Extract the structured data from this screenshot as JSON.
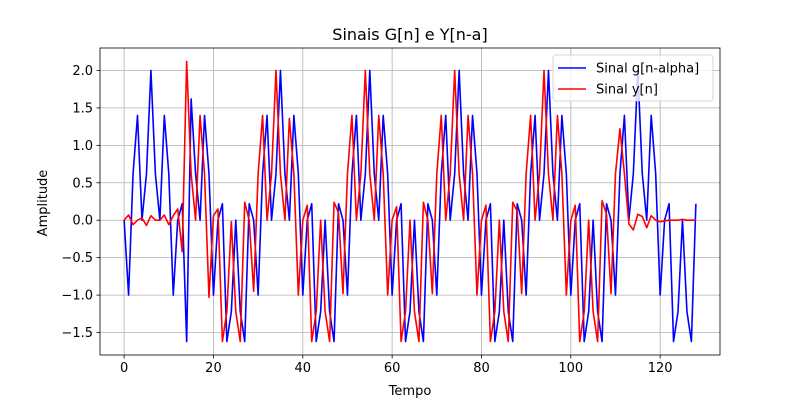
{
  "chart_data": {
    "type": "line",
    "title": "Sinais G[n] e Y[n-a]",
    "xlabel": "Tempo",
    "ylabel": "Amplitude",
    "xlim": [
      -5.4,
      133.4
    ],
    "ylim": [
      -1.8,
      2.3
    ],
    "xticks": [
      0,
      20,
      40,
      60,
      80,
      100,
      120
    ],
    "yticks": [
      -1.5,
      -1.0,
      -0.5,
      0.0,
      0.5,
      1.0,
      1.5,
      2.0
    ],
    "xtick_labels": [
      "0",
      "20",
      "40",
      "60",
      "80",
      "100",
      "120"
    ],
    "ytick_labels": [
      "−1.5",
      "−1.0",
      "−0.5",
      "0.0",
      "0.5",
      "1.0",
      "1.5",
      "2.0"
    ],
    "grid": true,
    "legend_position": "top-right",
    "series": [
      {
        "name": "Sinal g[n-alpha]",
        "color": "#0000ff",
        "x": [
          0,
          1,
          2,
          3,
          4,
          5,
          6,
          7,
          8,
          9,
          10,
          11,
          12,
          13,
          14,
          15,
          16,
          17,
          18,
          19,
          20,
          21,
          22,
          23,
          24,
          25,
          26,
          27,
          28,
          29,
          30,
          31,
          32,
          33,
          34,
          35,
          36,
          37,
          38,
          39,
          40,
          41,
          42,
          43,
          44,
          45,
          46,
          47,
          48,
          49,
          50,
          51,
          52,
          53,
          54,
          55,
          56,
          57,
          58,
          59,
          60,
          61,
          62,
          63,
          64,
          65,
          66,
          67,
          68,
          69,
          70,
          71,
          72,
          73,
          74,
          75,
          76,
          77,
          78,
          79,
          80,
          81,
          82,
          83,
          84,
          85,
          86,
          87,
          88,
          89,
          90,
          91,
          92,
          93,
          94,
          95,
          96,
          97,
          98,
          99,
          100,
          101,
          102,
          103,
          104,
          105,
          106,
          107,
          108,
          109,
          110,
          111,
          112,
          113,
          114,
          115,
          116,
          117,
          118,
          119,
          120,
          121,
          122,
          123,
          124,
          125,
          126,
          127,
          128
        ],
        "y": [
          0.0,
          -1.0,
          0.62,
          1.4,
          0.0,
          0.62,
          2.0,
          0.62,
          0.0,
          1.4,
          0.62,
          -1.0,
          0.0,
          0.22,
          -1.62,
          1.62,
          0.62,
          0.0,
          1.4,
          0.62,
          -1.0,
          0.0,
          0.22,
          -1.62,
          -1.22,
          0.0,
          -1.22,
          -1.62,
          0.22,
          0.0,
          -1.0,
          0.62,
          1.4,
          0.0,
          0.62,
          2.0,
          0.62,
          0.0,
          1.4,
          0.62,
          -1.0,
          0.0,
          0.22,
          -1.62,
          -1.22,
          0.0,
          -1.22,
          -1.62,
          0.22,
          0.0,
          -1.0,
          0.62,
          1.4,
          0.0,
          0.62,
          2.0,
          0.62,
          0.0,
          1.4,
          0.62,
          -1.0,
          0.0,
          0.22,
          -1.62,
          -1.22,
          0.0,
          -1.22,
          -1.62,
          0.22,
          0.0,
          -1.0,
          0.62,
          1.4,
          0.0,
          0.62,
          2.0,
          0.62,
          0.0,
          1.4,
          0.62,
          -1.0,
          0.0,
          0.22,
          -1.62,
          -1.22,
          0.0,
          -1.22,
          -1.62,
          0.22,
          0.0,
          -1.0,
          0.62,
          1.4,
          0.0,
          0.62,
          2.0,
          0.62,
          0.0,
          1.4,
          0.62,
          -1.0,
          0.0,
          0.22,
          -1.62,
          -1.22,
          0.0,
          -1.22,
          -1.62,
          0.22,
          0.0,
          -1.0,
          0.62,
          1.4,
          0.0,
          0.62,
          2.0,
          0.62,
          0.0,
          1.4,
          0.62,
          -1.0,
          0.0,
          0.22,
          -1.62,
          -1.22,
          0.0,
          -1.22,
          -1.62,
          0.22
        ]
      },
      {
        "name": "Sinal y[n]",
        "color": "#ff0000",
        "x": [
          0,
          1,
          2,
          3,
          4,
          5,
          6,
          7,
          8,
          9,
          10,
          11,
          12,
          13,
          14,
          15,
          16,
          17,
          18,
          19,
          20,
          21,
          22,
          23,
          24,
          25,
          26,
          27,
          28,
          29,
          30,
          31,
          32,
          33,
          34,
          35,
          36,
          37,
          38,
          39,
          40,
          41,
          42,
          43,
          44,
          45,
          46,
          47,
          48,
          49,
          50,
          51,
          52,
          53,
          54,
          55,
          56,
          57,
          58,
          59,
          60,
          61,
          62,
          63,
          64,
          65,
          66,
          67,
          68,
          69,
          70,
          71,
          72,
          73,
          74,
          75,
          76,
          77,
          78,
          79,
          80,
          81,
          82,
          83,
          84,
          85,
          86,
          87,
          88,
          89,
          90,
          91,
          92,
          93,
          94,
          95,
          96,
          97,
          98,
          99,
          100,
          101,
          102,
          103,
          104,
          105,
          106,
          107,
          108,
          109,
          110,
          111,
          112,
          113,
          114,
          115,
          116,
          117,
          118,
          119,
          120,
          121,
          122,
          123,
          124,
          125,
          126,
          127,
          128
        ],
        "y": [
          0.0,
          0.07,
          -0.06,
          0.0,
          0.03,
          -0.07,
          0.06,
          0.0,
          0.0,
          0.07,
          -0.06,
          0.06,
          0.15,
          -0.42,
          2.12,
          0.62,
          0.0,
          1.4,
          0.62,
          -1.03,
          0.06,
          0.15,
          -1.62,
          -1.22,
          -0.02,
          -1.22,
          -1.62,
          0.24,
          0.0,
          -0.95,
          0.62,
          1.4,
          0.0,
          0.62,
          2.0,
          0.62,
          0.0,
          1.36,
          0.62,
          -1.0,
          0.0,
          0.2,
          -1.62,
          -1.22,
          0.0,
          -1.22,
          -1.62,
          0.24,
          0.1,
          -0.98,
          0.62,
          1.4,
          0.0,
          0.62,
          2.0,
          0.62,
          0.0,
          1.4,
          0.62,
          -1.0,
          0.0,
          0.18,
          -1.62,
          -1.22,
          0.0,
          -1.22,
          -1.62,
          0.24,
          0.0,
          -0.98,
          0.62,
          1.4,
          0.0,
          0.62,
          2.0,
          0.62,
          0.0,
          1.4,
          0.62,
          -1.0,
          0.0,
          0.2,
          -1.62,
          -1.22,
          0.0,
          -1.22,
          -1.62,
          0.24,
          0.12,
          -0.98,
          0.62,
          1.4,
          0.0,
          0.62,
          2.0,
          0.62,
          0.0,
          1.4,
          0.62,
          -1.0,
          0.0,
          0.2,
          -1.62,
          -1.22,
          0.0,
          -1.22,
          -1.62,
          0.26,
          0.08,
          -0.98,
          0.62,
          1.22,
          0.62,
          -0.05,
          -0.13,
          0.08,
          0.05,
          -0.1,
          0.06,
          0.0,
          -0.02,
          -0.01,
          0.0,
          0.0,
          0.0,
          0.01,
          0.0,
          0.0,
          0.0
        ]
      }
    ]
  }
}
